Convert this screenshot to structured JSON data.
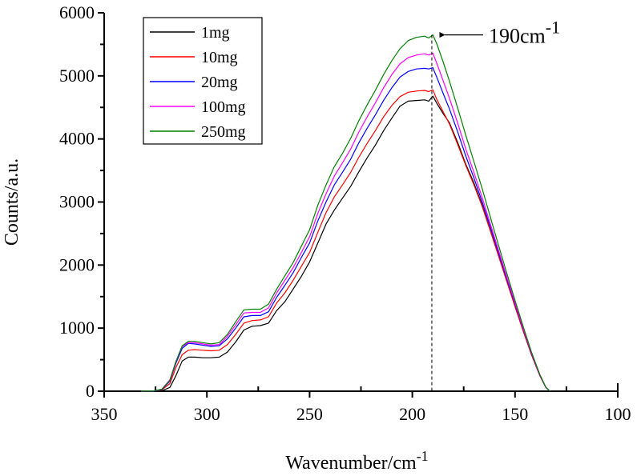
{
  "chart_data": {
    "type": "line",
    "title": "",
    "xlabel": "Wavenumber/cm",
    "xlabel_superscript": "-1",
    "ylabel": "Counts/a.u.",
    "xlim": [
      350,
      100
    ],
    "ylim": [
      0,
      6000
    ],
    "x_reversed": true,
    "xticks": [
      350,
      300,
      250,
      200,
      150,
      100
    ],
    "xtick_labels": [
      "350",
      "300",
      "250",
      "200",
      "150",
      "100"
    ],
    "yticks": [
      0,
      1000,
      2000,
      3000,
      4000,
      5000,
      6000
    ],
    "ytick_labels": [
      "0",
      "1000",
      "2000",
      "3000",
      "4000",
      "5000",
      "6000"
    ],
    "grid": false,
    "legend_position": "top-left",
    "x": [
      332,
      326,
      322,
      318,
      315,
      312,
      309,
      306,
      302,
      298,
      294,
      290,
      286,
      282,
      278,
      274,
      270,
      266,
      262,
      258,
      254,
      250,
      246,
      242,
      238,
      234,
      230,
      226,
      222,
      218,
      214,
      210,
      206,
      202,
      198,
      194,
      192,
      190,
      188,
      185,
      182,
      178,
      174,
      170,
      166,
      162,
      158,
      154,
      150,
      146,
      142,
      138,
      135,
      133
    ],
    "series": [
      {
        "name": "1mg",
        "color": "#000000",
        "values": [
          0,
          0,
          5,
          60,
          250,
          480,
          540,
          540,
          530,
          530,
          540,
          620,
          780,
          970,
          1030,
          1040,
          1080,
          1280,
          1420,
          1620,
          1820,
          2050,
          2350,
          2650,
          2870,
          3060,
          3250,
          3480,
          3700,
          3900,
          4130,
          4330,
          4520,
          4600,
          4610,
          4620,
          4600,
          4680,
          4560,
          4400,
          4260,
          3950,
          3600,
          3300,
          2950,
          2550,
          2150,
          1750,
          1350,
          950,
          580,
          250,
          60,
          0
        ]
      },
      {
        "name": "10mg",
        "color": "#ff0000",
        "values": [
          0,
          0,
          20,
          120,
          380,
          580,
          650,
          660,
          650,
          640,
          650,
          740,
          900,
          1080,
          1120,
          1130,
          1180,
          1400,
          1560,
          1760,
          1980,
          2200,
          2520,
          2830,
          3080,
          3270,
          3470,
          3710,
          3930,
          4130,
          4350,
          4530,
          4670,
          4740,
          4760,
          4770,
          4750,
          4780,
          4620,
          4430,
          4240,
          3920,
          3580,
          3270,
          2930,
          2540,
          2140,
          1740,
          1340,
          950,
          580,
          250,
          60,
          0
        ]
      },
      {
        "name": "20mg",
        "color": "#0000ff",
        "values": [
          0,
          0,
          25,
          160,
          450,
          680,
          760,
          750,
          730,
          710,
          720,
          830,
          1000,
          1180,
          1200,
          1200,
          1260,
          1490,
          1680,
          1880,
          2120,
          2350,
          2700,
          3000,
          3270,
          3470,
          3680,
          3940,
          4170,
          4380,
          4610,
          4810,
          4980,
          5070,
          5110,
          5120,
          5110,
          5130,
          4970,
          4720,
          4480,
          4120,
          3730,
          3380,
          3000,
          2600,
          2190,
          1780,
          1380,
          980,
          600,
          260,
          60,
          0
        ]
      },
      {
        "name": "100mg",
        "color": "#ff00ff",
        "values": [
          0,
          5,
          30,
          180,
          480,
          710,
          770,
          770,
          750,
          730,
          740,
          870,
          1050,
          1240,
          1250,
          1250,
          1320,
          1560,
          1760,
          1960,
          2200,
          2450,
          2820,
          3130,
          3410,
          3620,
          3840,
          4110,
          4350,
          4570,
          4810,
          5020,
          5190,
          5290,
          5330,
          5350,
          5330,
          5360,
          5190,
          4920,
          4650,
          4260,
          3840,
          3470,
          3070,
          2650,
          2230,
          1810,
          1400,
          990,
          610,
          260,
          60,
          0
        ]
      },
      {
        "name": "250mg",
        "color": "#008000",
        "values": [
          0,
          5,
          30,
          170,
          470,
          720,
          790,
          790,
          770,
          750,
          770,
          900,
          1100,
          1290,
          1300,
          1300,
          1380,
          1620,
          1830,
          2040,
          2300,
          2560,
          2950,
          3270,
          3560,
          3770,
          4010,
          4290,
          4540,
          4770,
          5020,
          5240,
          5430,
          5560,
          5610,
          5630,
          5600,
          5650,
          5500,
          5220,
          4920,
          4500,
          4060,
          3640,
          3210,
          2760,
          2310,
          1870,
          1440,
          1020,
          620,
          270,
          60,
          0
        ]
      }
    ],
    "annotations": [
      {
        "type": "vline",
        "x": 190.5,
        "style": "dashed",
        "y_from": 0,
        "y_to": 5650
      },
      {
        "type": "arrow",
        "text": "190cm",
        "superscript": "-1",
        "points_to": [
          190.5,
          5650
        ]
      }
    ]
  }
}
